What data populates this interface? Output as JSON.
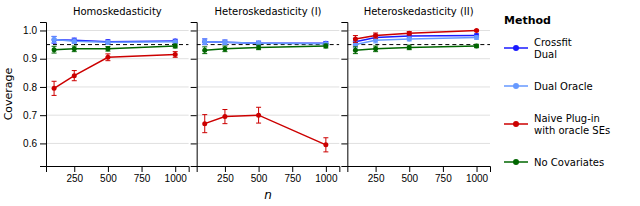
{
  "chart_data": [
    {
      "type": "line",
      "title": "Homoskedasticity",
      "y_label": "Coverage",
      "legend": "right",
      "legend_title": "Method",
      "marker": "circle",
      "grid": true,
      "x": [
        100,
        250,
        500,
        1000
      ],
      "xlim": [
        40,
        1100
      ],
      "xticks": [
        250,
        500,
        750,
        1000
      ],
      "ylim": [
        0.52,
        1.03
      ],
      "yticks": [
        0.6,
        0.7,
        0.8,
        0.9,
        {
          "value": 1.0,
          "label": "1.0"
        }
      ],
      "hline": 0.95,
      "series": [
        {
          "name": "Crossfit\nDual",
          "color": "#1a1aff",
          "values": [
            0.967,
            0.965,
            0.96,
            0.963
          ],
          "yerr": [
            0.012,
            0.008,
            0.007,
            0.006
          ]
        },
        {
          "name": "Dual Oracle",
          "color": "#6699ff",
          "values": [
            0.968,
            0.962,
            0.958,
            0.96
          ],
          "yerr": [
            0.01,
            0.008,
            0.006,
            0.005
          ]
        },
        {
          "name": "Naive Plug-in\nwith oracle SEs",
          "color": "#cc0000",
          "values": [
            0.795,
            0.84,
            0.905,
            0.915
          ],
          "yerr": [
            0.025,
            0.018,
            0.012,
            0.01
          ]
        },
        {
          "name": "No Covariates",
          "color": "#006600",
          "values": [
            0.932,
            0.935,
            0.935,
            0.945
          ],
          "yerr": [
            0.012,
            0.01,
            0.008,
            0.007
          ]
        }
      ]
    },
    {
      "type": "line",
      "title": "Heteroskedasticity (I)",
      "x_label": "n",
      "tick_labels": "x",
      "marker": "circle",
      "grid": true,
      "x": [
        100,
        250,
        500,
        1000
      ],
      "xlim": [
        40,
        1100
      ],
      "xticks": [
        250,
        500,
        750,
        1000
      ],
      "ylim": [
        0.52,
        1.03
      ],
      "yticks": [
        0.6,
        0.7,
        0.8,
        0.9,
        {
          "value": 1.0,
          "label": "1.0"
        }
      ],
      "hline": 0.95,
      "series": [
        {
          "name": "Crossfit\nDual",
          "color": "#1a1aff",
          "values": [
            0.96,
            0.958,
            0.955,
            0.955
          ],
          "yerr": [
            0.01,
            0.008,
            0.007,
            0.006
          ]
        },
        {
          "name": "Dual Oracle",
          "color": "#6699ff",
          "values": [
            0.96,
            0.958,
            0.955,
            0.953
          ],
          "yerr": [
            0.01,
            0.008,
            0.007,
            0.005
          ]
        },
        {
          "name": "Naive Plug-in\nwith oracle SEs",
          "color": "#cc0000",
          "values": [
            0.67,
            0.695,
            0.7,
            0.595
          ],
          "yerr": [
            0.032,
            0.025,
            0.028,
            0.025
          ]
        },
        {
          "name": "No Covariates",
          "color": "#006600",
          "values": [
            0.93,
            0.935,
            0.94,
            0.945
          ],
          "yerr": [
            0.012,
            0.01,
            0.008,
            0.007
          ]
        }
      ]
    },
    {
      "type": "line",
      "title": "Heteroskedasticity (II)",
      "tick_labels": "x",
      "marker": "circle",
      "grid": true,
      "x": [
        100,
        250,
        500,
        1000
      ],
      "xlim": [
        40,
        1100
      ],
      "xticks": [
        250,
        500,
        750,
        1000
      ],
      "ylim": [
        0.52,
        1.03
      ],
      "yticks": [
        0.6,
        0.7,
        0.8,
        0.9,
        {
          "value": 1.0,
          "label": "1.0"
        }
      ],
      "hline": 0.95,
      "series": [
        {
          "name": "Crossfit\nDual",
          "color": "#1a1aff",
          "values": [
            0.96,
            0.975,
            0.98,
            0.982
          ],
          "yerr": [
            0.012,
            0.009,
            0.007,
            0.006
          ]
        },
        {
          "name": "Dual Oracle",
          "color": "#6699ff",
          "values": [
            0.95,
            0.965,
            0.97,
            0.975
          ],
          "yerr": [
            0.012,
            0.009,
            0.007,
            0.006
          ]
        },
        {
          "name": "Naive Plug-in\nwith oracle SEs",
          "color": "#cc0000",
          "values": [
            0.97,
            0.982,
            0.99,
            1.0
          ],
          "yerr": [
            0.012,
            0.009,
            0.006,
            0.002
          ]
        },
        {
          "name": "No Covariates",
          "color": "#006600",
          "values": [
            0.93,
            0.935,
            0.94,
            0.945
          ],
          "yerr": [
            0.012,
            0.01,
            0.008,
            0.006
          ]
        }
      ]
    }
  ]
}
